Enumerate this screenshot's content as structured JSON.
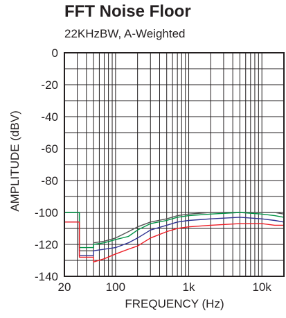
{
  "chart_data": {
    "type": "line",
    "title": "FFT Noise Floor",
    "subtitle": "22KHzBW, A-Weighted",
    "xlabel": "FREQUENCY (Hz)",
    "ylabel": "AMPLITUDE (dBV)",
    "xscale": "log",
    "xlim": [
      20,
      20000
    ],
    "ylim": [
      -140,
      0
    ],
    "xticks": [
      {
        "value": 20,
        "label": "20"
      },
      {
        "value": 100,
        "label": "100"
      },
      {
        "value": 1000,
        "label": "1k"
      },
      {
        "value": 10000,
        "label": "10k"
      }
    ],
    "yticks": [
      {
        "value": 0,
        "label": "0"
      },
      {
        "value": -20,
        "label": "-20"
      },
      {
        "value": -40,
        "label": "-40"
      },
      {
        "value": -60,
        "label": "-60"
      },
      {
        "value": -80,
        "label": "-80"
      },
      {
        "value": -100,
        "label": "-100"
      },
      {
        "value": -120,
        "label": "-120"
      },
      {
        "value": -140,
        "label": "-140"
      }
    ],
    "grid": true,
    "series": [
      {
        "color": "#555555",
        "x": [
          20,
          32,
          32,
          50,
          50,
          70,
          100,
          150,
          200,
          300,
          500,
          700,
          1000,
          2000,
          5000,
          10000,
          15000,
          20000
        ],
        "y": [
          -100,
          -100,
          -124,
          -124,
          -119,
          -118,
          -116,
          -112,
          -109,
          -106,
          -104,
          -102,
          -101,
          -100,
          -100,
          -100,
          -100,
          -101
        ]
      },
      {
        "color": "#2e3192",
        "x": [
          20,
          32,
          32,
          50,
          50,
          70,
          100,
          150,
          200,
          300,
          500,
          700,
          1000,
          2000,
          5000,
          10000,
          15000,
          20000
        ],
        "y": [
          -106,
          -106,
          -127,
          -127,
          -124,
          -123,
          -122,
          -119,
          -116,
          -111,
          -108,
          -106,
          -105,
          -104,
          -103,
          -104,
          -105,
          -106
        ]
      },
      {
        "color": "#009245",
        "x": [
          20,
          32,
          32,
          50,
          50,
          70,
          100,
          150,
          200,
          300,
          500,
          700,
          1000,
          2000,
          5000,
          10000,
          15000,
          20000
        ],
        "y": [
          -100,
          -100,
          -122,
          -122,
          -120,
          -119,
          -117,
          -115,
          -111,
          -107,
          -105,
          -103,
          -102,
          -101,
          -100,
          -101,
          -102,
          -103
        ]
      },
      {
        "color": "#ed1c24",
        "x": [
          20,
          32,
          32,
          50,
          50,
          70,
          100,
          150,
          200,
          300,
          500,
          700,
          1000,
          2000,
          5000,
          10000,
          15000,
          20000
        ],
        "y": [
          -106,
          -106,
          -128,
          -128,
          -131,
          -129,
          -126,
          -123,
          -121,
          -116,
          -112,
          -110,
          -109,
          -108,
          -107,
          -107,
          -108,
          -108
        ]
      }
    ]
  }
}
